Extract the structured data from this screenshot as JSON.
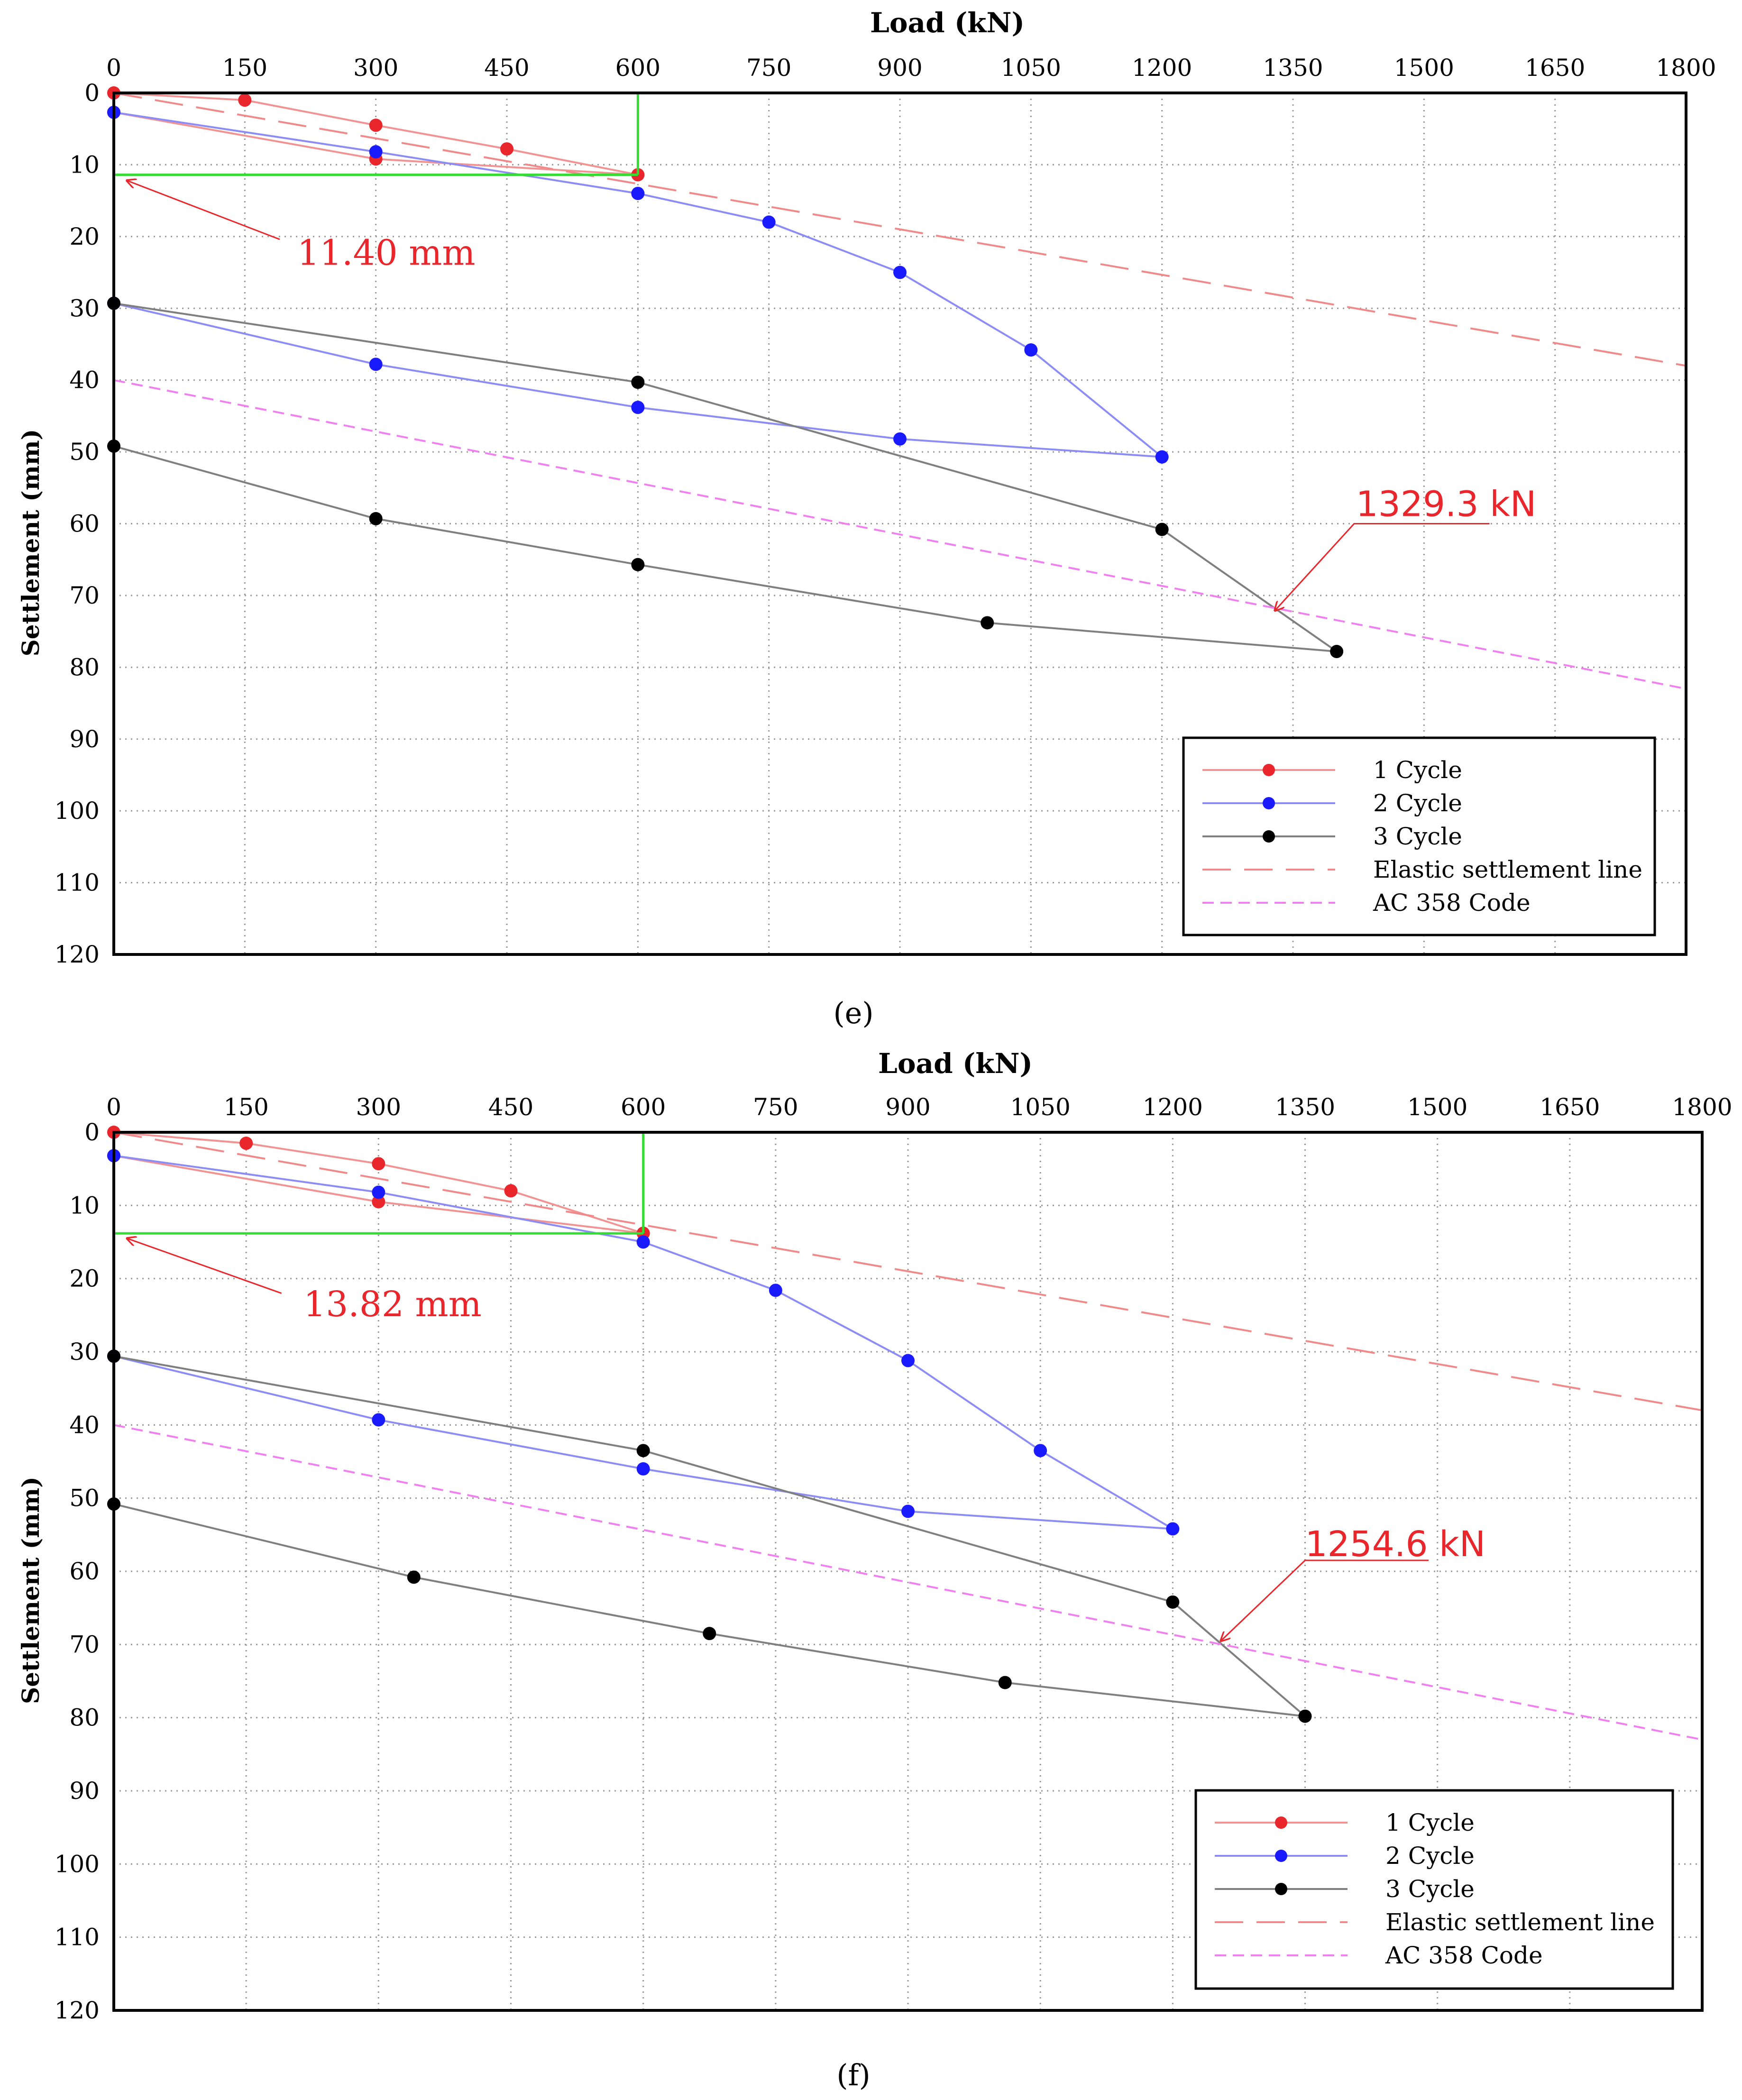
{
  "chart_data": [
    {
      "type": "line",
      "panel_label": "(e)",
      "xlabel": "Load (kN)",
      "ylabel": "Settlement (mm)",
      "xlim": [
        0,
        1800
      ],
      "ylim": [
        0,
        120
      ],
      "x_ticks": [
        "0",
        "150",
        "300",
        "450",
        "600",
        "750",
        "900",
        "1050",
        "1200",
        "1350",
        "1500",
        "1650",
        "1800"
      ],
      "y_ticks": [
        "0",
        "10",
        "20",
        "30",
        "40",
        "50",
        "60",
        "70",
        "80",
        "90",
        "100",
        "110",
        "120"
      ],
      "grid": true,
      "legend_position": "bottom-right",
      "series": [
        {
          "name": "1 Cycle",
          "color": "#e8262b",
          "line_color": "#f29393",
          "style": "solid-marker",
          "points": [
            [
              0,
              0
            ],
            [
              150,
              1
            ],
            [
              300,
              4.5
            ],
            [
              450,
              7.8
            ],
            [
              600,
              11.4
            ],
            [
              300,
              9.2
            ],
            [
              0,
              2.7
            ]
          ]
        },
        {
          "name": "2 Cycle",
          "color": "#1a1aff",
          "line_color": "#8c8cf5",
          "style": "solid-marker",
          "points": [
            [
              0,
              2.7
            ],
            [
              300,
              8.2
            ],
            [
              600,
              14
            ],
            [
              750,
              18
            ],
            [
              900,
              25
            ],
            [
              1050,
              35.8
            ],
            [
              1200,
              50.7
            ],
            [
              900,
              48.2
            ],
            [
              600,
              43.8
            ],
            [
              300,
              37.8
            ],
            [
              0,
              29.3
            ]
          ]
        },
        {
          "name": "3 Cycle",
          "color": "#000000",
          "line_color": "#7f7f7f",
          "style": "solid-marker",
          "points": [
            [
              0,
              29.3
            ],
            [
              600,
              40.3
            ],
            [
              1200,
              60.8
            ],
            [
              1400,
              77.8
            ],
            [
              1000,
              73.8
            ],
            [
              600,
              65.7
            ],
            [
              300,
              59.3
            ],
            [
              0,
              49.2
            ]
          ]
        },
        {
          "name": "Elastic settlement line",
          "color": "#f08a8a",
          "style": "long-dash",
          "points": [
            [
              0,
              0
            ],
            [
              1800,
              38
            ]
          ]
        },
        {
          "name": "AC 358 Code",
          "color": "#f07ff0",
          "style": "short-dash",
          "points": [
            [
              0,
              40
            ],
            [
              1800,
              83
            ]
          ]
        }
      ],
      "guide_lines": {
        "color": "#33dd33",
        "load": 600,
        "settlement": 11.4
      },
      "annotations": [
        {
          "text": "11.40 mm",
          "color": "#e8262b",
          "point": [
            15,
            12.2
          ],
          "text_at": [
            210,
            22.5
          ],
          "elbow": [
            190,
            20.4
          ]
        },
        {
          "text": "1329.3 kN",
          "color": "#e8262b",
          "point": [
            1329.3,
            72.1
          ],
          "text_at": [
            1422,
            57.5
          ],
          "elbow": [
            1420,
            60
          ],
          "tail": [
            1575,
            60
          ]
        }
      ]
    },
    {
      "type": "line",
      "panel_label": "(f)",
      "xlabel": "Load (kN)",
      "ylabel": "Settlement (mm)",
      "xlim": [
        0,
        1800
      ],
      "ylim": [
        0,
        120
      ],
      "x_ticks": [
        "0",
        "150",
        "300",
        "450",
        "600",
        "750",
        "900",
        "1050",
        "1200",
        "1350",
        "1500",
        "1650",
        "1800"
      ],
      "y_ticks": [
        "0",
        "10",
        "20",
        "30",
        "40",
        "50",
        "60",
        "70",
        "80",
        "90",
        "100",
        "110",
        "120"
      ],
      "grid": true,
      "legend_position": "bottom-right",
      "series": [
        {
          "name": "1 Cycle",
          "color": "#e8262b",
          "line_color": "#f29393",
          "style": "solid-marker",
          "points": [
            [
              0,
              0
            ],
            [
              150,
              1.5
            ],
            [
              300,
              4.3
            ],
            [
              450,
              8
            ],
            [
              600,
              13.8
            ],
            [
              300,
              9.5
            ],
            [
              0,
              3.2
            ]
          ]
        },
        {
          "name": "2 Cycle",
          "color": "#1a1aff",
          "line_color": "#8c8cf5",
          "style": "solid-marker",
          "points": [
            [
              0,
              3.2
            ],
            [
              300,
              8.2
            ],
            [
              600,
              15
            ],
            [
              750,
              21.6
            ],
            [
              900,
              31.2
            ],
            [
              1050,
              43.5
            ],
            [
              1200,
              54.2
            ],
            [
              900,
              51.8
            ],
            [
              600,
              46
            ],
            [
              300,
              39.3
            ],
            [
              0,
              30.6
            ]
          ]
        },
        {
          "name": "3 Cycle",
          "color": "#000000",
          "line_color": "#7f7f7f",
          "style": "solid-marker",
          "points": [
            [
              0,
              30.6
            ],
            [
              600,
              43.5
            ],
            [
              1200,
              64.2
            ],
            [
              1350,
              79.8
            ],
            [
              1010,
              75.2
            ],
            [
              675,
              68.5
            ],
            [
              340,
              60.8
            ],
            [
              0,
              50.8
            ]
          ]
        },
        {
          "name": "Elastic settlement line",
          "color": "#f08a8a",
          "style": "long-dash",
          "points": [
            [
              0,
              0
            ],
            [
              1800,
              38
            ]
          ]
        },
        {
          "name": "AC 358 Code",
          "color": "#f07ff0",
          "style": "short-dash",
          "points": [
            [
              0,
              40
            ],
            [
              1800,
              83
            ]
          ]
        }
      ],
      "guide_lines": {
        "color": "#33dd33",
        "load": 600,
        "settlement": 13.82
      },
      "annotations": [
        {
          "text": "13.82 mm",
          "color": "#e8262b",
          "point": [
            15,
            14.5
          ],
          "text_at": [
            215,
            23.7
          ],
          "elbow": [
            190,
            22
          ]
        },
        {
          "text": "1254.6 kN",
          "color": "#e8262b",
          "point": [
            1254.6,
            69.5
          ],
          "text_at": [
            1350,
            56.5
          ],
          "elbow": [
            1350,
            58.5
          ],
          "tail": [
            1490,
            58.5
          ]
        }
      ]
    }
  ]
}
